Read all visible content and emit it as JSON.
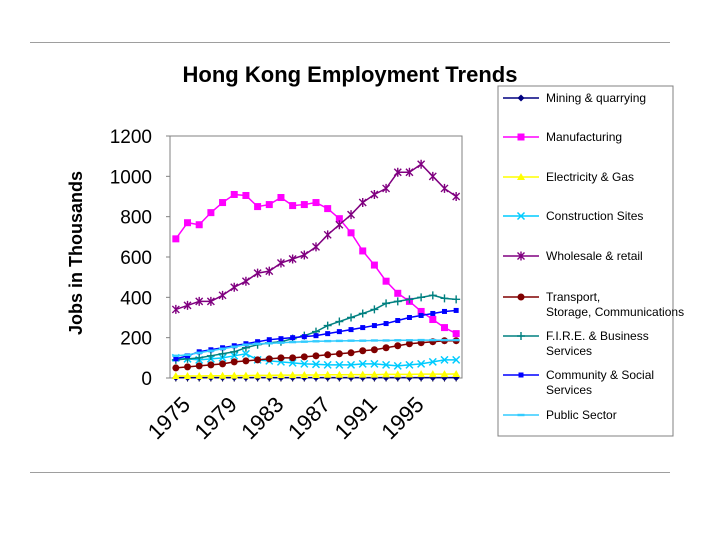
{
  "chart_data": {
    "type": "line",
    "title": "Hong Kong Employment Trends",
    "xlabel": "",
    "ylabel": "Jobs in Thousands",
    "ylim": [
      0,
      1200
    ],
    "yticks": [
      "0",
      "200",
      "400",
      "600",
      "800",
      "1000",
      "1200"
    ],
    "x": [
      1974,
      1975,
      1976,
      1977,
      1978,
      1979,
      1980,
      1981,
      1982,
      1983,
      1984,
      1985,
      1986,
      1987,
      1988,
      1989,
      1990,
      1991,
      1992,
      1993,
      1994,
      1995,
      1996,
      1997,
      1998
    ],
    "xlim": [
      1973.5,
      1998.5
    ],
    "xticks": [
      "1975",
      "1979",
      "1983",
      "1987",
      "1991",
      "1995"
    ],
    "grid": false,
    "legend_position": "right",
    "series": [
      {
        "name": "Mining & quarrying",
        "color": "#000080",
        "marker": "diamond",
        "values": [
          2,
          2,
          2,
          2,
          2,
          2,
          2,
          2,
          2,
          2,
          2,
          2,
          2,
          2,
          2,
          2,
          2,
          2,
          2,
          2,
          2,
          2,
          2,
          2,
          2
        ]
      },
      {
        "name": "Manufacturing",
        "color": "#FF00FF",
        "marker": "square",
        "values": [
          690,
          770,
          760,
          820,
          870,
          910,
          905,
          850,
          860,
          895,
          855,
          860,
          870,
          840,
          790,
          720,
          630,
          560,
          480,
          420,
          380,
          330,
          290,
          250,
          220
        ]
      },
      {
        "name": "Electricity & Gas",
        "color": "#FFFF00",
        "marker": "triangle",
        "values": [
          10,
          10,
          10,
          11,
          11,
          12,
          12,
          13,
          13,
          14,
          14,
          15,
          15,
          16,
          16,
          17,
          17,
          17,
          18,
          18,
          18,
          19,
          19,
          19,
          20
        ]
      },
      {
        "name": "Construction Sites",
        "color": "#00CCFF",
        "marker": "x",
        "values": [
          100,
          95,
          90,
          95,
          100,
          110,
          120,
          90,
          85,
          80,
          75,
          70,
          68,
          65,
          65,
          65,
          70,
          70,
          65,
          60,
          65,
          70,
          80,
          90,
          90
        ]
      },
      {
        "name": "Wholesale & retail",
        "color": "#800080",
        "marker": "star",
        "values": [
          340,
          360,
          380,
          380,
          410,
          450,
          480,
          520,
          530,
          570,
          590,
          610,
          650,
          710,
          760,
          810,
          870,
          910,
          940,
          1020,
          1020,
          1060,
          1000,
          940,
          900
        ]
      },
      {
        "name": "Transport, Storage, Communications",
        "color": "#800000",
        "marker": "circle",
        "values": [
          50,
          55,
          60,
          65,
          70,
          80,
          85,
          90,
          95,
          100,
          100,
          105,
          110,
          115,
          120,
          125,
          135,
          140,
          150,
          160,
          170,
          175,
          180,
          185,
          185
        ]
      },
      {
        "name": "F.I.R.E. & Business Services",
        "color": "#008080",
        "marker": "plus",
        "values": [
          90,
          95,
          100,
          110,
          120,
          130,
          150,
          165,
          175,
          180,
          195,
          210,
          230,
          260,
          280,
          300,
          320,
          340,
          370,
          380,
          390,
          400,
          410,
          395,
          390
        ]
      },
      {
        "name": "Community & Social Services",
        "color": "#0000FF",
        "marker": "smallsquare",
        "values": [
          95,
          110,
          130,
          140,
          150,
          160,
          170,
          180,
          190,
          195,
          200,
          205,
          210,
          220,
          230,
          240,
          250,
          260,
          270,
          285,
          300,
          310,
          320,
          330,
          335
        ]
      },
      {
        "name": "Public Sector",
        "color": "#33CCFF",
        "marker": "dash",
        "values": [
          110,
          115,
          125,
          135,
          145,
          155,
          165,
          170,
          172,
          175,
          178,
          180,
          182,
          183,
          184,
          185,
          185,
          186,
          186,
          187,
          187,
          188,
          188,
          188,
          188
        ]
      }
    ]
  }
}
